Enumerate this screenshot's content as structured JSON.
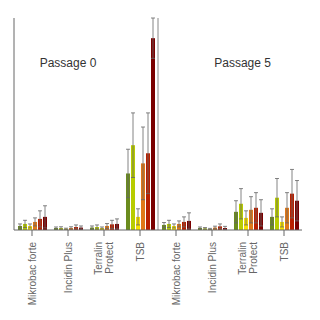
{
  "chart_data": {
    "type": "bar",
    "categories": [
      "Mikrobac forte",
      "Incidin Plus",
      "Terralin\nProtect",
      "TSB",
      "Mikrobac forte",
      "Incidin Plus",
      "Terralin\nProtect",
      "TSB"
    ],
    "series": [
      {
        "color": "#6b8c1e",
        "values": [
          0.02,
          0.01,
          0.012,
          0.28,
          0.025,
          0.01,
          0.09,
          0.065
        ],
        "errors": [
          0.01,
          0.005,
          0.008,
          0.12,
          0.012,
          0.005,
          0.055,
          0.04
        ]
      },
      {
        "color": "#b8cc00",
        "values": [
          0.03,
          0.01,
          0.015,
          0.42,
          0.03,
          0.008,
          0.13,
          0.16
        ],
        "errors": [
          0.018,
          0.006,
          0.01,
          0.16,
          0.018,
          0.004,
          0.075,
          0.095
        ]
      },
      {
        "color": "#f5e000",
        "values": [
          0.02,
          0.006,
          0.01,
          0.065,
          0.02,
          0.005,
          0.06,
          0.04
        ],
        "errors": [
          0.01,
          0.003,
          0.005,
          0.04,
          0.01,
          0.003,
          0.035,
          0.025
        ]
      },
      {
        "color": "#e07818",
        "values": [
          0.04,
          0.01,
          0.02,
          0.33,
          0.03,
          0.012,
          0.1,
          0.11
        ],
        "errors": [
          0.02,
          0.006,
          0.012,
          0.18,
          0.015,
          0.007,
          0.065,
          0.075
        ]
      },
      {
        "color": "#b82000",
        "values": [
          0.055,
          0.015,
          0.028,
          0.38,
          0.04,
          0.018,
          0.11,
          0.18
        ],
        "errors": [
          0.04,
          0.01,
          0.02,
          0.2,
          0.025,
          0.012,
          0.075,
          0.12
        ]
      },
      {
        "color": "#7a0000",
        "values": [
          0.065,
          0.012,
          0.03,
          0.95,
          0.045,
          0.01,
          0.085,
          0.145
        ],
        "errors": [
          0.055,
          0.008,
          0.025,
          0.1,
          0.04,
          0.008,
          0.065,
          0.1
        ]
      }
    ],
    "ylim": [
      0,
      1.05
    ],
    "yticks": [],
    "grid": false,
    "tick_labels": "x",
    "annotations": [
      {
        "text": "Passage 0"
      },
      {
        "text": "Passage 5"
      }
    ]
  }
}
